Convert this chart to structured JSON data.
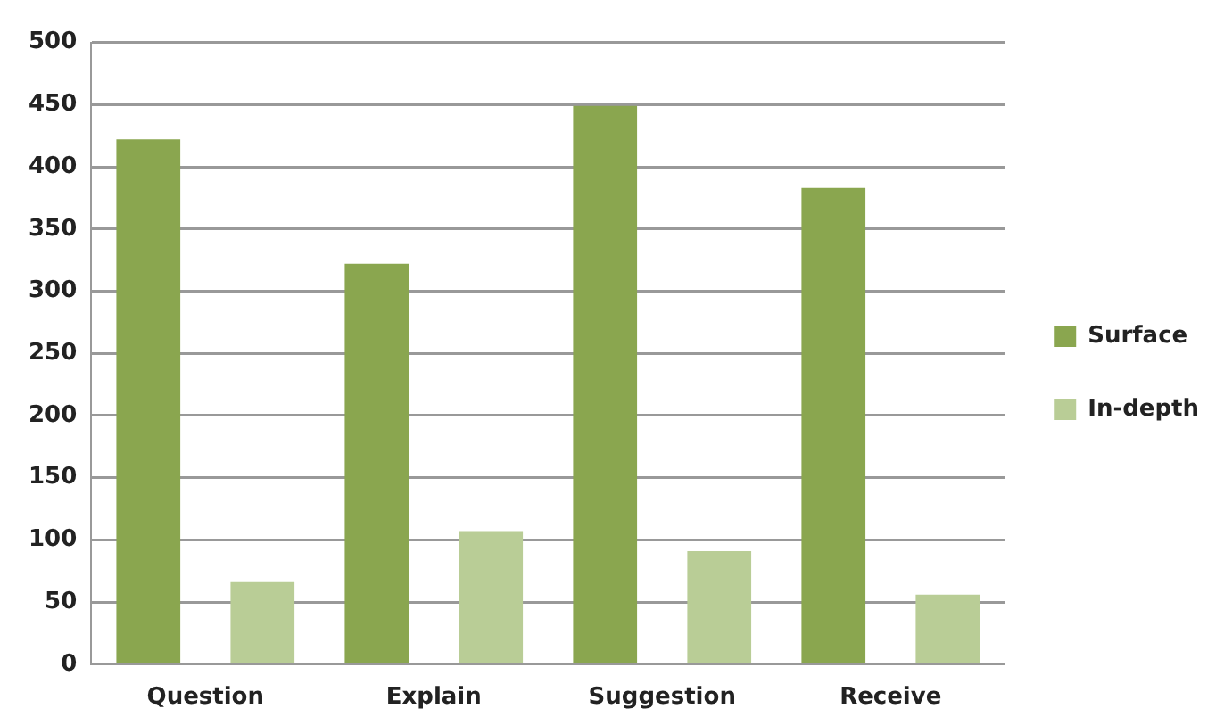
{
  "chart_data": {
    "type": "bar",
    "categories": [
      "Question",
      "Explain",
      "Suggestion",
      "Receive"
    ],
    "series": [
      {
        "name": "Surface",
        "color": "#8aa64f",
        "values": [
          422,
          322,
          449,
          383
        ]
      },
      {
        "name": "In-depth",
        "color": "#b9cd96",
        "values": [
          66,
          107,
          91,
          56
        ]
      }
    ],
    "ylim": [
      0,
      500
    ],
    "yticks": [
      0,
      50,
      100,
      150,
      200,
      250,
      300,
      350,
      400,
      450,
      500
    ],
    "grid": "y",
    "legend": "right"
  }
}
